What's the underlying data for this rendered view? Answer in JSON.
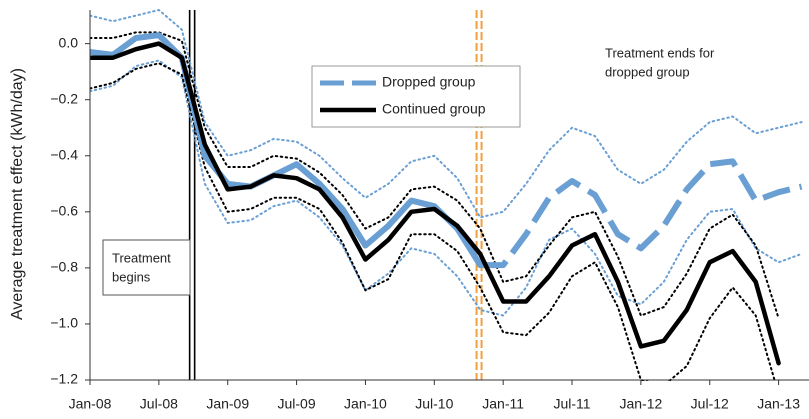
{
  "chart_data": {
    "type": "line",
    "y_label": "Average treatment effect (kWh/day)",
    "xlim": [
      0,
      62.3
    ],
    "ylim": [
      -1.2,
      0.12
    ],
    "xticks": [
      {
        "value": 0,
        "label": "Jan-08"
      },
      {
        "value": 6,
        "label": "Jul-08"
      },
      {
        "value": 12,
        "label": "Jan-09"
      },
      {
        "value": 18,
        "label": "Jul-09"
      },
      {
        "value": 24,
        "label": "Jan-10"
      },
      {
        "value": 30,
        "label": "Jul-10"
      },
      {
        "value": 36,
        "label": "Jan-11"
      },
      {
        "value": 42,
        "label": "Jul-11"
      },
      {
        "value": 48,
        "label": "Jan-12"
      },
      {
        "value": 54,
        "label": "Jul-12"
      },
      {
        "value": 60,
        "label": "Jan-13"
      }
    ],
    "yticks": [
      {
        "value": 0,
        "label": "0.0"
      },
      {
        "value": -0.2,
        "label": "−0.2"
      },
      {
        "value": -0.4,
        "label": "−0.4"
      },
      {
        "value": -0.6,
        "label": "−0.6"
      },
      {
        "value": -0.8,
        "label": "−0.8"
      },
      {
        "value": -1.0,
        "label": "−1.0"
      },
      {
        "value": -1.2,
        "label": "−1.2"
      }
    ],
    "grid": false,
    "legend": "top-center",
    "x": [
      0,
      2,
      4,
      6,
      8,
      10,
      12,
      14,
      16,
      18,
      20,
      22,
      24,
      26,
      28,
      30,
      32,
      34,
      36,
      38,
      40,
      42,
      44,
      46,
      48,
      50,
      52,
      54,
      56,
      58,
      60,
      62
    ],
    "series": [
      {
        "name": "Dropped group",
        "color": "#6a9fd4",
        "dash_from": 34,
        "values": [
          -0.03,
          -0.04,
          0.02,
          0.03,
          -0.05,
          -0.4,
          -0.5,
          -0.51,
          -0.47,
          -0.43,
          -0.5,
          -0.59,
          -0.72,
          -0.65,
          -0.56,
          -0.58,
          -0.66,
          -0.79,
          -0.79,
          -0.68,
          -0.55,
          -0.49,
          -0.54,
          -0.68,
          -0.73,
          -0.65,
          -0.52,
          -0.43,
          -0.42,
          -0.56,
          -0.53,
          -0.51
        ]
      },
      {
        "name": "Continued group",
        "color": "#000000",
        "values": [
          -0.05,
          -0.05,
          -0.02,
          0.0,
          -0.05,
          -0.36,
          -0.52,
          -0.51,
          -0.47,
          -0.48,
          -0.52,
          -0.62,
          -0.77,
          -0.7,
          -0.6,
          -0.59,
          -0.65,
          -0.75,
          -0.92,
          -0.92,
          -0.83,
          -0.72,
          -0.68,
          -0.85,
          -1.08,
          -1.06,
          -0.95,
          -0.78,
          -0.74,
          -0.85,
          -1.14,
          null
        ]
      }
    ],
    "bands": [
      {
        "color": "#6a9fd4",
        "upper": [
          0.1,
          0.08,
          0.1,
          0.12,
          0.05,
          -0.28,
          -0.4,
          -0.38,
          -0.34,
          -0.35,
          -0.4,
          -0.48,
          -0.55,
          -0.5,
          -0.42,
          -0.4,
          -0.48,
          -0.62,
          -0.6,
          -0.5,
          -0.38,
          -0.3,
          -0.33,
          -0.45,
          -0.5,
          -0.45,
          -0.35,
          -0.28,
          -0.26,
          -0.32,
          -0.3,
          -0.28
        ],
        "lower": [
          -0.17,
          -0.15,
          -0.08,
          -0.06,
          -0.12,
          -0.5,
          -0.64,
          -0.63,
          -0.58,
          -0.56,
          -0.62,
          -0.72,
          -0.88,
          -0.82,
          -0.73,
          -0.75,
          -0.83,
          -0.95,
          -0.97,
          -0.87,
          -0.7,
          -0.66,
          -0.75,
          -0.9,
          -0.93,
          -0.85,
          -0.7,
          -0.6,
          -0.59,
          -0.73,
          -0.78,
          -0.75
        ]
      },
      {
        "color": "#000000",
        "upper": [
          0.02,
          0.02,
          0.04,
          0.04,
          0.01,
          -0.3,
          -0.44,
          -0.44,
          -0.4,
          -0.41,
          -0.46,
          -0.54,
          -0.66,
          -0.62,
          -0.52,
          -0.51,
          -0.56,
          -0.66,
          -0.85,
          -0.83,
          -0.72,
          -0.62,
          -0.6,
          -0.76,
          -0.97,
          -0.94,
          -0.82,
          -0.66,
          -0.61,
          -0.72,
          -0.98,
          null
        ],
        "lower": [
          -0.16,
          -0.14,
          -0.09,
          -0.07,
          -0.11,
          -0.44,
          -0.6,
          -0.59,
          -0.55,
          -0.55,
          -0.59,
          -0.71,
          -0.88,
          -0.84,
          -0.68,
          -0.68,
          -0.74,
          -0.87,
          -1.03,
          -1.04,
          -0.96,
          -0.83,
          -0.78,
          -0.94,
          -1.2,
          -1.22,
          -1.15,
          -0.98,
          -0.87,
          -0.97,
          -1.25,
          null
        ]
      }
    ],
    "vlines": [
      {
        "x": 8.9,
        "color": "#000000"
      },
      {
        "x": 33.9,
        "color": "#f0a040"
      }
    ],
    "annotations": [
      [
        "Treatment",
        "begins"
      ],
      [
        "Treatment ends for",
        "dropped group"
      ]
    ]
  }
}
